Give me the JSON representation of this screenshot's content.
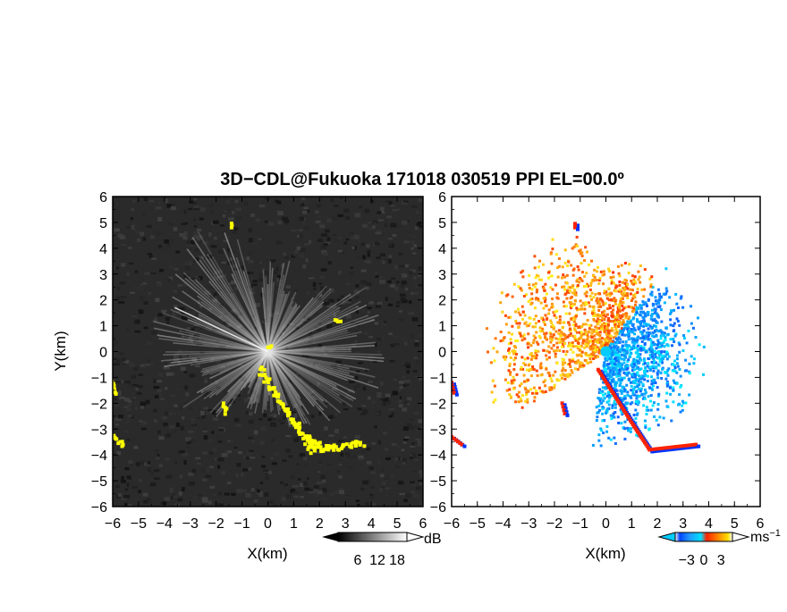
{
  "chart_data": [
    {
      "type": "heatmap",
      "panel": "left",
      "title": "3D−CDL@Fukuoka 171018 030519 PPI EL=00.0º",
      "xlabel": "X(km)",
      "ylabel": "Y(km)",
      "xlim": [
        -6,
        6
      ],
      "ylim": [
        -6,
        6
      ],
      "xticks": [
        "−6",
        "−5",
        "−4",
        "−3",
        "−2",
        "−1",
        "0",
        "1",
        "2",
        "3",
        "4",
        "5",
        "6"
      ],
      "yticks": [
        "−6",
        "−5",
        "−4",
        "−3",
        "−2",
        "−1",
        "0",
        "1",
        "2",
        "3",
        "4",
        "5",
        "6"
      ],
      "colorbar": {
        "unit": "dB",
        "tick_labels": [
          "6",
          "12",
          "18"
        ],
        "range": [
          0,
          21
        ]
      },
      "colors": {
        "background": "#2a2a2a",
        "flag": "#ffff00"
      }
    },
    {
      "type": "heatmap",
      "panel": "right",
      "xlabel": "X(km)",
      "xlim": [
        -6,
        6
      ],
      "ylim": [
        -6,
        6
      ],
      "xticks": [
        "−6",
        "−5",
        "−4",
        "−3",
        "−2",
        "−1",
        "0",
        "1",
        "2",
        "3",
        "4",
        "5",
        "6"
      ],
      "yticks": [
        "−6",
        "−5",
        "−4",
        "−3",
        "−2",
        "−1",
        "0",
        "1",
        "2",
        "3",
        "4",
        "5",
        "6"
      ],
      "colorbar": {
        "unit": "ms",
        "unit_exp": "−1",
        "tick_labels": [
          "−3",
          "0",
          "3"
        ],
        "range": [
          -5,
          5
        ]
      },
      "colors": {
        "approaching": "#1e5fff",
        "receding": "#ffa000"
      }
    }
  ]
}
